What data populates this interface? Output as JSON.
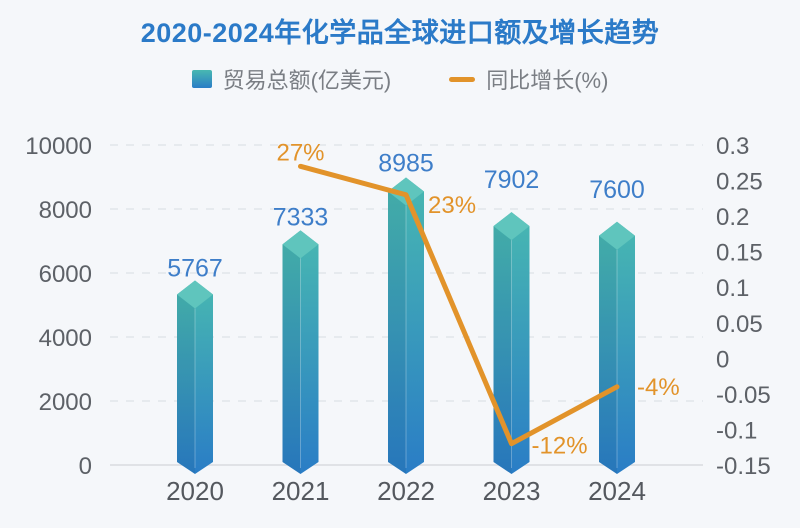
{
  "title": "2020-2024年化学品全球进口额及增长趋势",
  "colors": {
    "background": "#f5f7fa",
    "title": "#2b7ac8",
    "bar_top": "#48b8b1",
    "bar_bottom": "#2a7dc6",
    "bar_cap": "#5fc5bd",
    "line": "#e2932a",
    "value_label": "#3e7ec9",
    "axis_text": "#5d6167",
    "x_axis_text": "#54585e",
    "legend_text": "#7a7e84",
    "gridline": "#e2e5ea",
    "axis_line": "#d9dcdf"
  },
  "chart_data": {
    "type": "bar+line",
    "title": "2020-2024年化学品全球进口额及增长趋势",
    "categories": [
      "2020",
      "2021",
      "2022",
      "2023",
      "2024"
    ],
    "legend": [
      "贸易总额(亿美元)",
      "同比增长(%)"
    ],
    "legend_position": "top",
    "grid": true,
    "series": [
      {
        "name": "贸易总额(亿美元)",
        "type": "bar",
        "axis": "left",
        "values": [
          5767,
          7333,
          8985,
          7902,
          7600
        ],
        "labels": [
          "5767",
          "7333",
          "8985",
          "7902",
          "7600"
        ]
      },
      {
        "name": "同比增长(%)",
        "type": "line",
        "axis": "right",
        "values": [
          null,
          0.27,
          0.23,
          -0.12,
          -0.04
        ],
        "labels": [
          null,
          "27%",
          "23%",
          "-12%",
          "-4%"
        ]
      }
    ],
    "left_axis": {
      "min": 0,
      "max": 10000,
      "ticks": [
        "10000",
        "8000",
        "6000",
        "4000",
        "2000",
        "0"
      ]
    },
    "right_axis": {
      "min": -0.15,
      "max": 0.3,
      "ticks": [
        "0.3",
        "0.25",
        "0.2",
        "0.15",
        "0.1",
        "0.05",
        "0",
        "-0.05",
        "-0.1",
        "-0.15"
      ]
    }
  }
}
